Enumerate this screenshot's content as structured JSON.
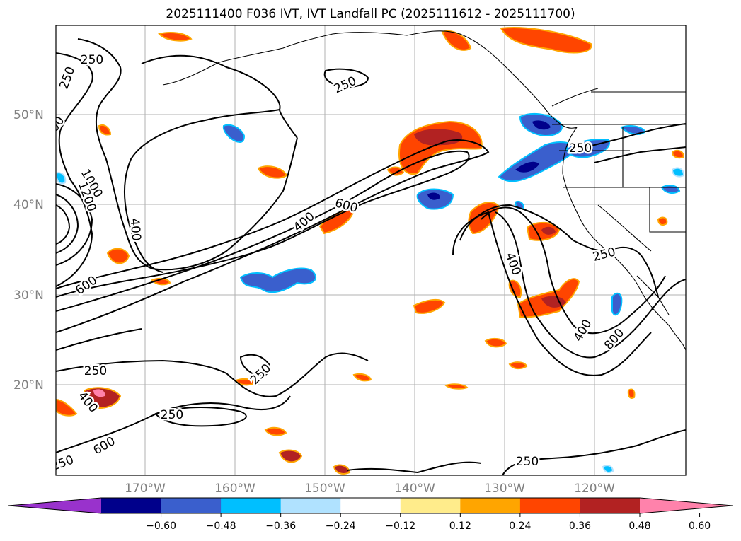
{
  "title": "2025111400 F036 IVT, IVT Landfall PC (2025111612 - 2025111700)",
  "lat_ticks": [
    "50°N",
    "40°N",
    "30°N",
    "20°N"
  ],
  "lon_ticks": [
    "170°W",
    "160°W",
    "150°W",
    "140°W",
    "130°W",
    "120°W"
  ],
  "colorbar": {
    "ticks": [
      "−0.60",
      "−0.48",
      "−0.36",
      "−0.24",
      "−0.12",
      "0.12",
      "0.24",
      "0.36",
      "0.48",
      "0.60"
    ],
    "colors": [
      "#9932cc",
      "#00008b",
      "#3a5fcd",
      "#00bfff",
      "#b0e2ff",
      "#ffffff",
      "#ffec8b",
      "#ffa500",
      "#ff4500",
      "#b22222",
      "#ff82ab"
    ]
  },
  "contour_labels": [
    "250",
    "250",
    "250",
    "250",
    "250",
    "250",
    "250",
    "250",
    "250",
    "250",
    "400",
    "400",
    "400",
    "400",
    "400",
    "600",
    "600",
    "600",
    "600",
    "800",
    "1000",
    "1200"
  ],
  "chart_data": {
    "type": "map",
    "fields": [
      "IVT contours",
      "IVT Landfall PC shading"
    ],
    "contour_levels": [
      250,
      400,
      600,
      800,
      1000,
      1200
    ],
    "shading_levels": [
      -0.6,
      -0.48,
      -0.36,
      -0.24,
      -0.12,
      0.12,
      0.24,
      0.36,
      0.48,
      0.6
    ],
    "lat_range": [
      10,
      60
    ],
    "lon_range": [
      -180,
      -110
    ],
    "grid": true
  }
}
